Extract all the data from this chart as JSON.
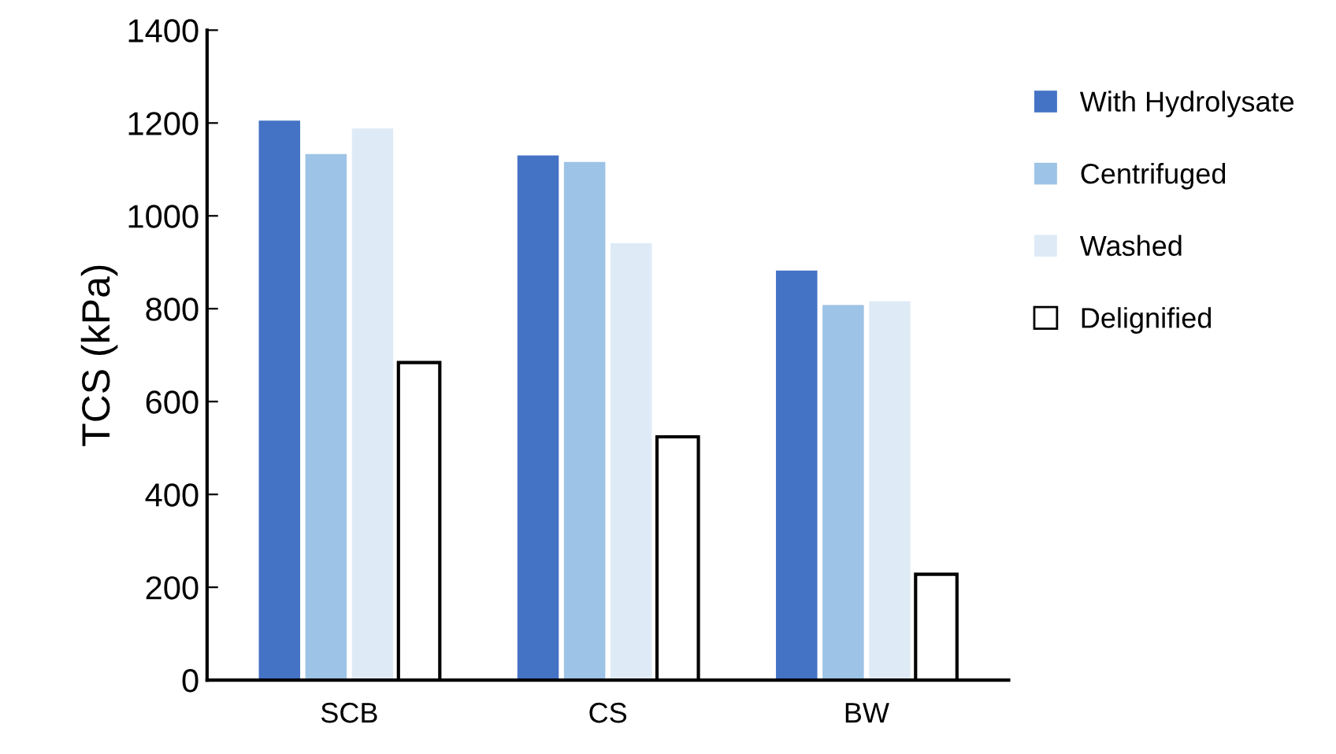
{
  "chart_data": {
    "type": "bar",
    "ylabel": "TCS (kPa)",
    "categories": [
      "SCB",
      "CS",
      "BW"
    ],
    "series": [
      {
        "name": "With Hydrolysate",
        "color": "#4472c4",
        "values": [
          1205,
          1130,
          882
        ]
      },
      {
        "name": "Centrifuged",
        "color": "#9dc3e6",
        "values": [
          1133,
          1116,
          808
        ]
      },
      {
        "name": "Washed",
        "color": "#deebf7",
        "values": [
          1188,
          941,
          816
        ]
      },
      {
        "name": "Delignified",
        "color": "#ffffff",
        "values": [
          684,
          524,
          228
        ]
      }
    ],
    "ylim": [
      0,
      1400
    ],
    "yticks": [
      0,
      200,
      400,
      600,
      800,
      1000,
      1200,
      1400
    ],
    "grid": false,
    "legend": "right"
  }
}
